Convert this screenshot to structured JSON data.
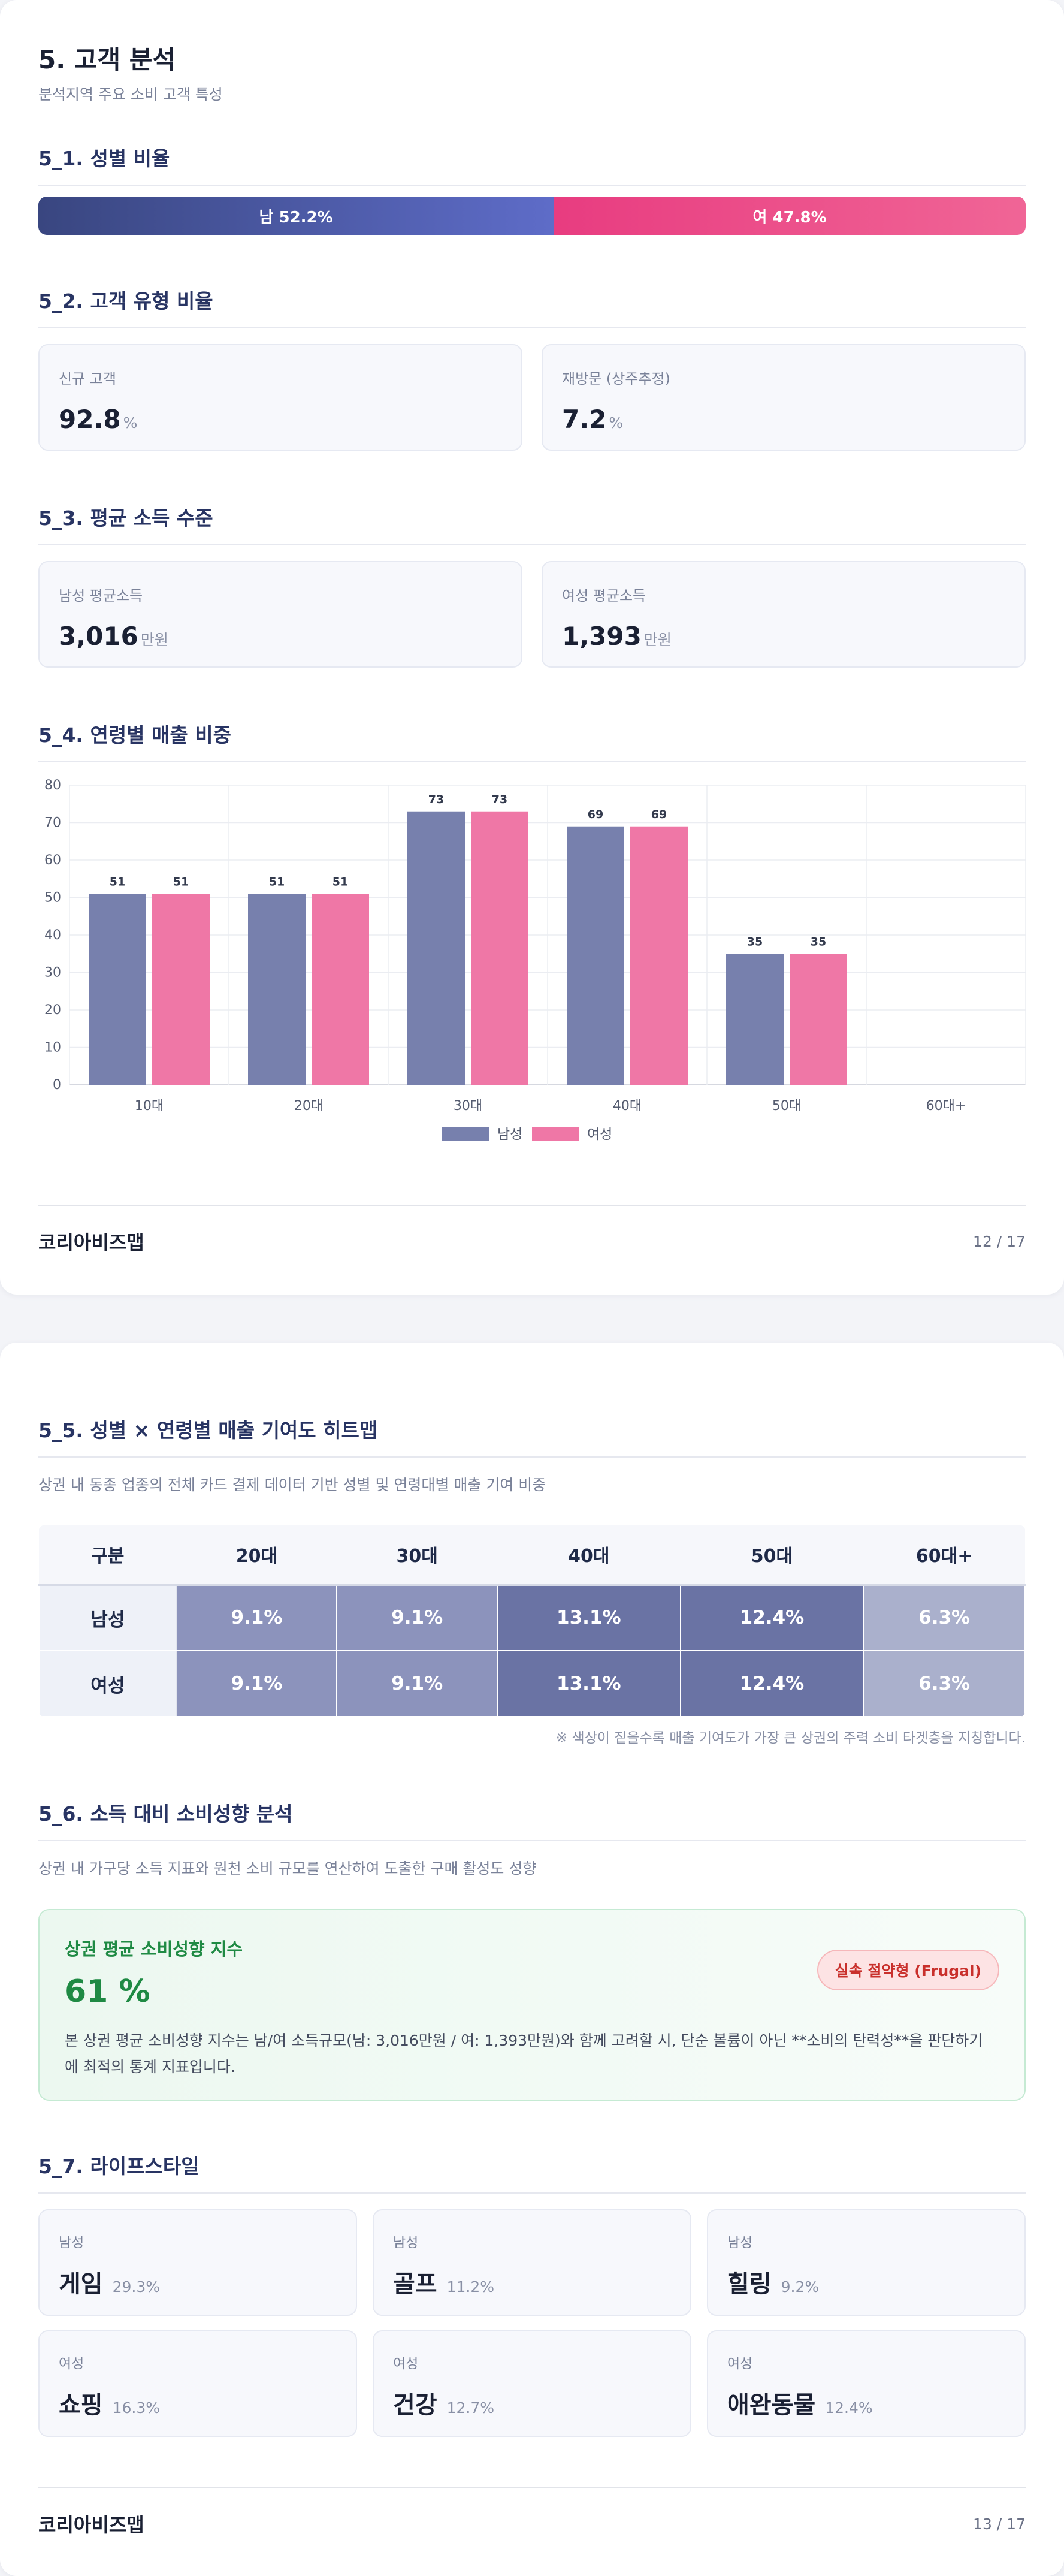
{
  "page1": {
    "title": "5. 고객 분석",
    "subtitle": "분석지역 주요 소비 고객 특성",
    "gender": {
      "heading": "5_1. 성별 비율",
      "male_label": "남 52.2%",
      "female_label": "여 47.8%",
      "male_pct": 52.2,
      "female_pct": 47.8
    },
    "customer_type": {
      "heading": "5_2. 고객 유형 비율",
      "cards": [
        {
          "label": "신규 고객",
          "value": "92.8",
          "unit": "%"
        },
        {
          "label": "재방문 (상주추정)",
          "value": "7.2",
          "unit": "%"
        }
      ]
    },
    "income": {
      "heading": "5_3. 평균 소득 수준",
      "cards": [
        {
          "label": "남성 평균소득",
          "value": "3,016",
          "unit": "만원"
        },
        {
          "label": "여성 평균소득",
          "value": "1,393",
          "unit": "만원"
        }
      ]
    },
    "age_sales": {
      "heading": "5_4. 연령별 매출 비중"
    },
    "footer": {
      "brand": "코리아비즈맵",
      "page": "12 / 17"
    }
  },
  "chart_data": {
    "type": "bar",
    "title": "",
    "categories": [
      "10대",
      "20대",
      "30대",
      "40대",
      "50대",
      "60대+"
    ],
    "series": [
      {
        "name": "남성",
        "values": [
          51,
          51,
          73,
          69,
          35,
          0
        ],
        "color": "#7780ad"
      },
      {
        "name": "여성",
        "values": [
          51,
          51,
          73,
          69,
          35,
          0
        ],
        "color": "#ef77a6"
      }
    ],
    "data_labels": [
      [
        "51",
        "51",
        "73",
        "69",
        "35",
        ""
      ],
      [
        "51",
        "51",
        "73",
        "69",
        "35",
        ""
      ]
    ],
    "ylim": [
      0,
      80
    ],
    "yticks": [
      0,
      10,
      20,
      30,
      40,
      50,
      60,
      70,
      80
    ],
    "grid": true,
    "legend": "bottom"
  },
  "page2": {
    "heatmap": {
      "heading": "5_5. 성별 × 연령별 매출 기여도 히트맵",
      "desc": "상권 내 동종 업종의 전체 카드 결제 데이터 기반 성별 및 연령대별 매출 기여 비중",
      "corner": "구분",
      "columns": [
        "20대",
        "30대",
        "40대",
        "50대",
        "60대+"
      ],
      "rows": [
        {
          "label": "남성",
          "cells": [
            "9.1%",
            "9.1%",
            "13.1%",
            "12.4%",
            "6.3%"
          ]
        },
        {
          "label": "여성",
          "cells": [
            "9.1%",
            "9.1%",
            "13.1%",
            "12.4%",
            "6.3%"
          ]
        }
      ],
      "cell_colors": [
        "#8c93bc",
        "#8c93bc",
        "#6a73a4",
        "#6a73a4",
        "#aab0cc"
      ],
      "note": "※ 색상이 짙을수록 매출 기여도가 가장 큰 상권의 주력 소비 타겟층을 지칭합니다."
    },
    "spending": {
      "heading": "5_6. 소득 대비 소비성향 분석",
      "desc": "상권 내 가구당 소득 지표와 원천 소비 규모를 연산하여 도출한 구매 활성도 성향",
      "index_title": "상권 평균 소비성향 지수",
      "index_value": "61 %",
      "badge": "실속 절약형 (Frugal)",
      "explanation_line1": "본 상권 평균 소비성향 지수는 남/여 소득규모(남: 3,016만원 / 여: 1,393만원)와 함께 고려할 시, 단순 볼륨이 아닌 **소비의 탄력성**을 판단하기",
      "explanation_line2": "에 최적의 통계 지표입니다."
    },
    "lifestyle": {
      "heading": "5_7. 라이프스타일",
      "items": [
        {
          "gender": "남성",
          "name": "게임",
          "pct": "29.3%"
        },
        {
          "gender": "남성",
          "name": "골프",
          "pct": "11.2%"
        },
        {
          "gender": "남성",
          "name": "힐링",
          "pct": "9.2%"
        },
        {
          "gender": "여성",
          "name": "쇼핑",
          "pct": "16.3%"
        },
        {
          "gender": "여성",
          "name": "건강",
          "pct": "12.7%"
        },
        {
          "gender": "여성",
          "name": "애완동물",
          "pct": "12.4%"
        }
      ]
    },
    "footer": {
      "brand": "코리아비즈맵",
      "page": "13 / 17"
    }
  }
}
